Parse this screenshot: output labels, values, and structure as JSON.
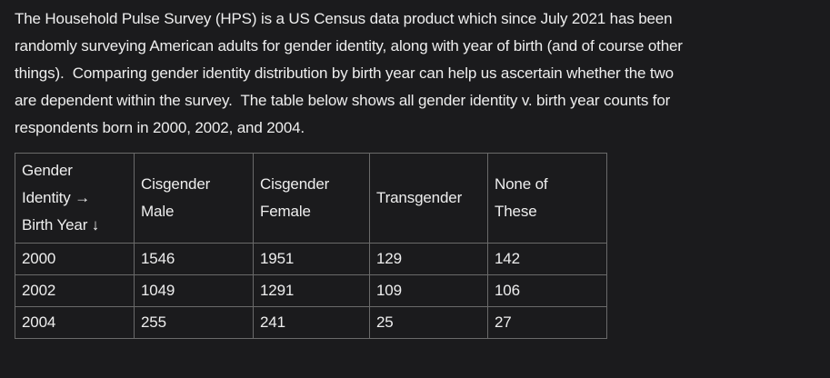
{
  "theme": {
    "bg": "#1b1b1d",
    "text": "#eeeeee",
    "border": "#6a6a6a"
  },
  "intro": {
    "lines": [
      "The Household Pulse Survey (HPS) is a US Census data product which since July 2021 has been",
      "randomly surveying American adults for gender identity, along with year of birth (and of course other",
      "things).  Comparing gender identity distribution by birth year can help us ascertain whether the two",
      "are dependent within the survey.  The table below shows all gender identity v. birth year counts for",
      "respondents born in 2000, 2002, and 2004."
    ]
  },
  "table": {
    "corner": {
      "lines": [
        "Gender",
        "Identity →",
        "Birth Year ↓"
      ]
    },
    "columns": [
      "Cisgender Male",
      "Cisgender Female",
      "Transgender",
      "None of These"
    ],
    "rows": [
      {
        "year": "2000",
        "values": [
          "1546",
          "1951",
          "129",
          "142"
        ]
      },
      {
        "year": "2002",
        "values": [
          "1049",
          "1291",
          "109",
          "106"
        ]
      },
      {
        "year": "2004",
        "values": [
          "255",
          "241",
          "25",
          "27"
        ]
      }
    ]
  }
}
